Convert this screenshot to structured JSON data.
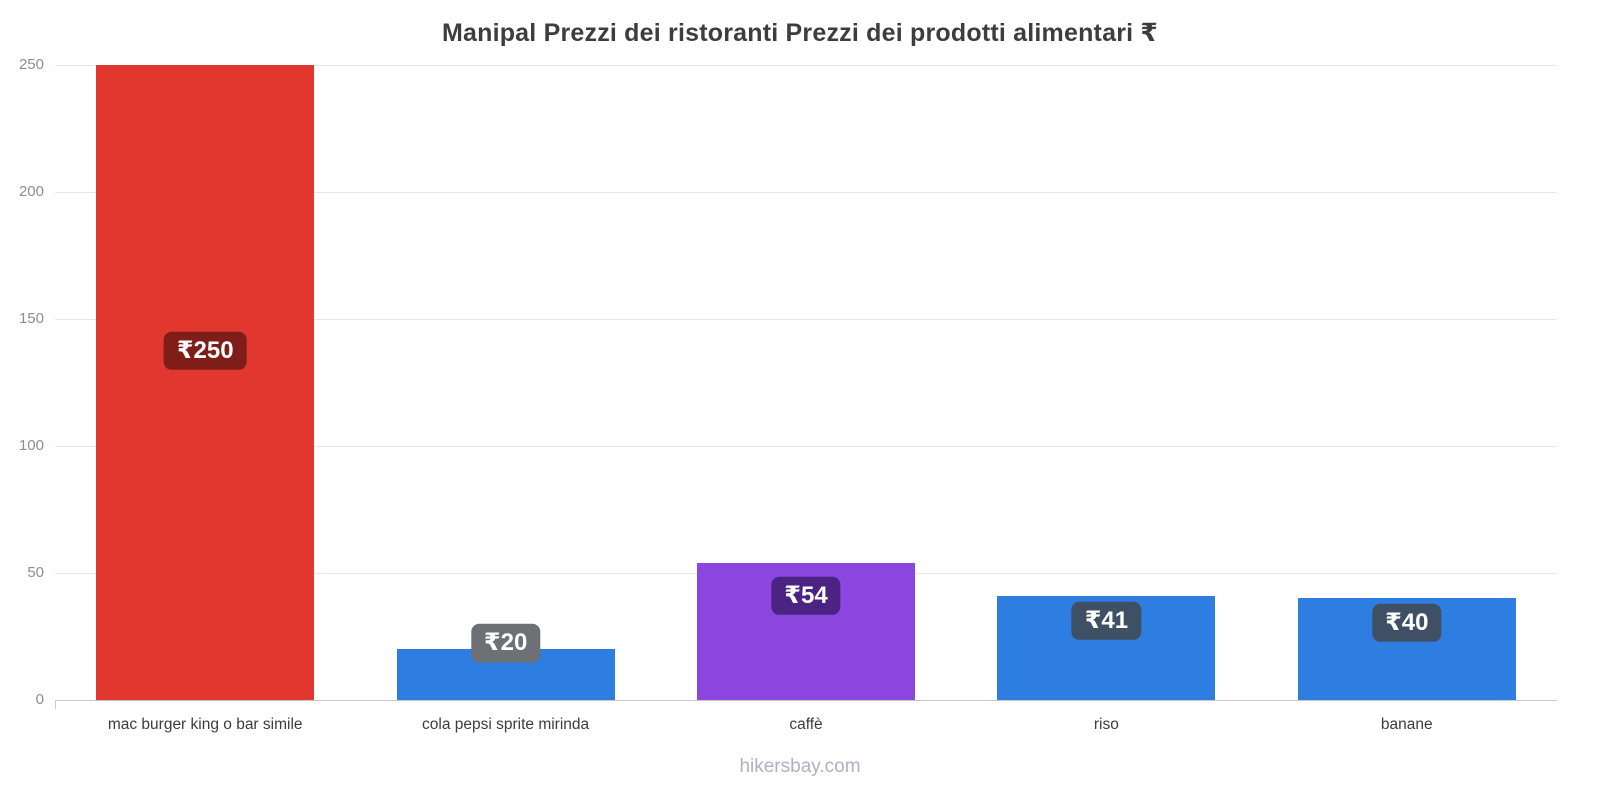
{
  "chart_data": {
    "type": "bar",
    "title": "Manipal Prezzi dei ristoranti Prezzi dei prodotti alimentari ₹",
    "categories": [
      "mac burger king o bar simile",
      "cola pepsi sprite mirinda",
      "caffè",
      "riso",
      "banane"
    ],
    "values": [
      250,
      20,
      54,
      41,
      40
    ],
    "labels": [
      "₹250",
      "₹20",
      "₹54",
      "₹41",
      "₹40"
    ],
    "bar_colors": [
      "#e2372f",
      "#2e7de0",
      "#8a46de",
      "#2e7de0",
      "#2e7de0"
    ],
    "label_bg_colors": [
      "#7f1d18",
      "#6d7175",
      "#4b2382",
      "#405064",
      "#405064"
    ],
    "xlabel": "",
    "ylabel": "",
    "ylim": [
      0,
      250
    ],
    "yticks": [
      0,
      50,
      100,
      150,
      200,
      250
    ],
    "grid": "horizontal",
    "legend": "none",
    "colors": {
      "gridline": "#e7e7e7",
      "axis_line": "#c9c9c9",
      "tick_text": "#8e8e8e",
      "category_text": "#3c3c3c",
      "title_text": "#3d3d3d",
      "value_text": "#ffffff"
    }
  },
  "footer": {
    "text": "hikersbay.com"
  }
}
